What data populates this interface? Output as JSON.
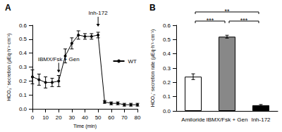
{
  "chart_data": [
    {
      "type": "line",
      "title": "A",
      "x": [
        0,
        5,
        10,
        15,
        20,
        25,
        30,
        35,
        40,
        45,
        50,
        55,
        60,
        65,
        70,
        75,
        80
      ],
      "series": [
        {
          "name": "WT",
          "color": "#000000",
          "marker": "circle",
          "values": [
            0.23,
            0.21,
            0.19,
            0.19,
            0.2,
            0.38,
            0.47,
            0.53,
            0.52,
            0.52,
            0.53,
            0.05,
            0.04,
            0.04,
            0.03,
            0.03,
            0.03
          ],
          "errors": [
            0.05,
            0.04,
            0.04,
            0.03,
            0.04,
            0.05,
            0.04,
            0.03,
            0.02,
            0.02,
            0.02,
            0.01,
            0.01,
            0.01,
            0.01,
            0.01,
            0.01
          ]
        }
      ],
      "xlabel": "Time (min)",
      "ylabel": "HCO₃⁻ secretion (μEq·h⁻¹·cm⁻²)",
      "xlim": [
        0,
        80
      ],
      "xticks": [
        0,
        10,
        20,
        30,
        40,
        50,
        60,
        70,
        80
      ],
      "ylim": [
        0,
        0.6
      ],
      "yticks": [
        {
          "value": 0,
          "label": "0.0"
        },
        0.1,
        0.2,
        0.3,
        0.4,
        0.5,
        0.6
      ],
      "grid": false,
      "legend": "right",
      "annotations": [
        {
          "text": "IBMX/Fsk + Gen",
          "x": 20
        },
        {
          "text": "Inh-172",
          "x": 50
        }
      ]
    },
    {
      "type": "bar",
      "title": "B",
      "categories": [
        "Amiloride",
        "IBMX/Fsk + Gen",
        "Inh-172"
      ],
      "values": [
        0.24,
        0.52,
        0.04
      ],
      "errors": [
        0.02,
        0.01,
        0.005
      ],
      "colors": [
        "#ffffff",
        "#888888",
        "#000000"
      ],
      "ylabel": "HCO₃⁻ secretion rate (μEq·h⁻¹·cm⁻²)",
      "ylim": [
        0,
        0.6
      ],
      "yticks": [
        {
          "value": 0,
          "label": "0.0"
        },
        0.1,
        0.2,
        0.3,
        0.4,
        0.5,
        0.6
      ],
      "grid": false,
      "significance": [
        {
          "from": 0,
          "to": 1,
          "label": "***"
        },
        {
          "from": 0,
          "to": 2,
          "label": "**"
        },
        {
          "from": 1,
          "to": 2,
          "label": "***"
        }
      ]
    }
  ]
}
